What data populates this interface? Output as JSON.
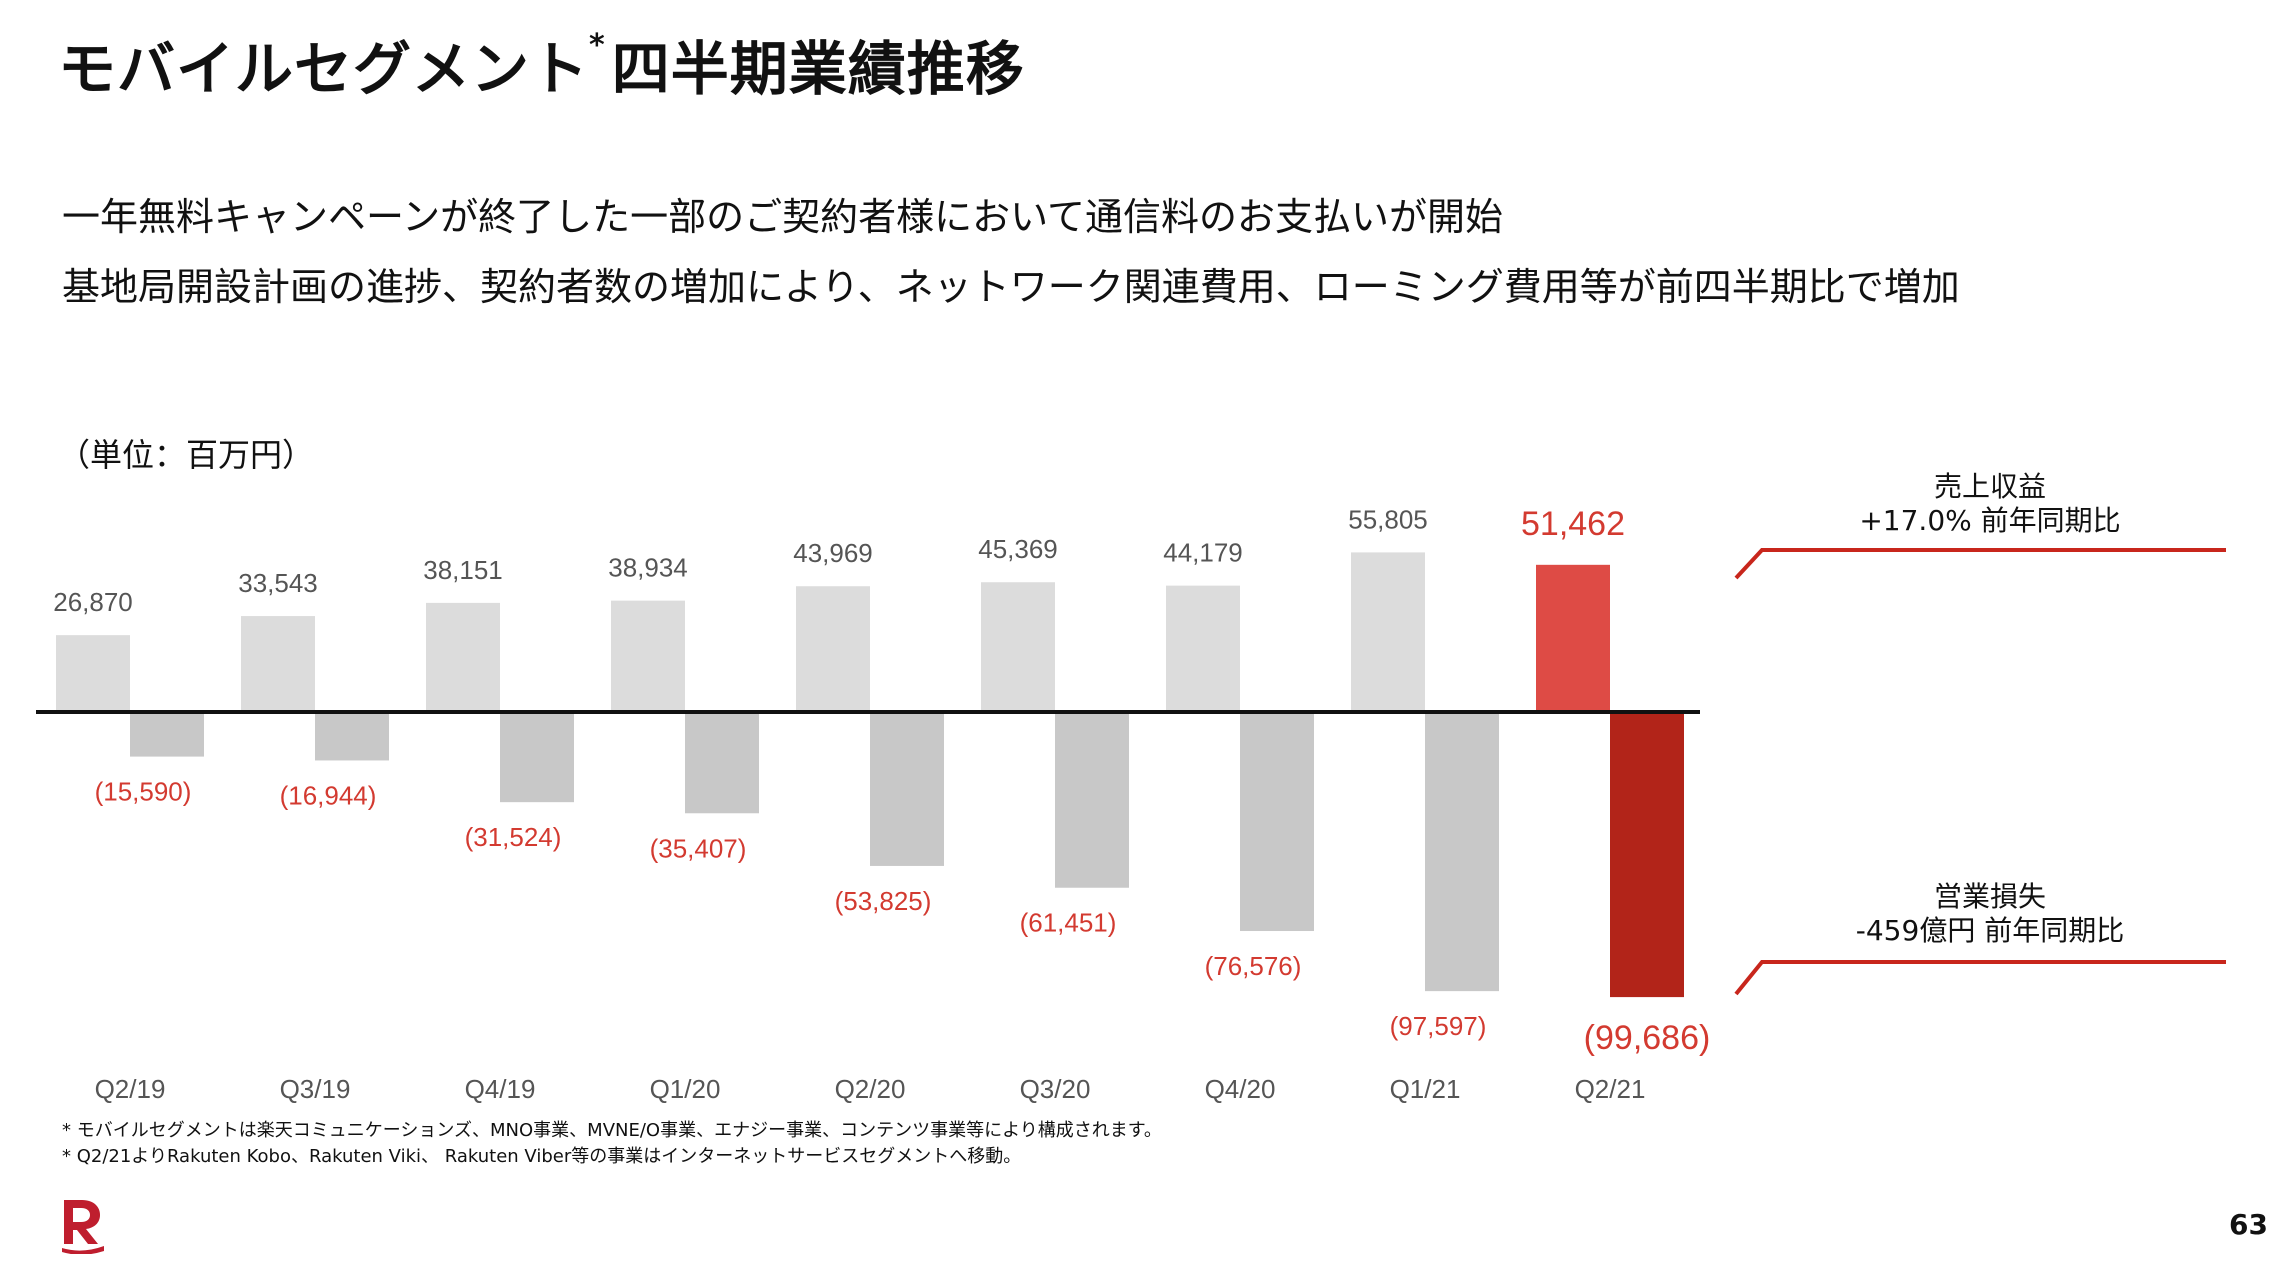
{
  "title": "モバイルセグメント",
  "title_asterisk": "*",
  "title_rest": "四半期業績推移",
  "bullets": [
    "一年無料キャンペーンが終了した一部のご契約者様において通信料のお支払いが開始",
    "基地局開設計画の進捗、契約者数の増加により、ネットワーク関連費用、ローミング費用等が前四半期比で増加"
  ],
  "unit_label": "（単位：百万円）",
  "chart_data": {
    "type": "bar",
    "categories": [
      "Q2/19",
      "Q3/19",
      "Q4/19",
      "Q1/20",
      "Q2/20",
      "Q3/20",
      "Q4/20",
      "Q1/21",
      "Q2/21"
    ],
    "series": [
      {
        "name": "売上収益",
        "values": [
          26870,
          33543,
          38151,
          38934,
          43969,
          45369,
          44179,
          55805,
          51462
        ],
        "labels": [
          "26,870",
          "33,543",
          "38,151",
          "38,934",
          "43,969",
          "45,369",
          "44,179",
          "55,805",
          "51,462"
        ]
      },
      {
        "name": "営業損失",
        "values": [
          -15590,
          -16944,
          -31524,
          -35407,
          -53825,
          -61451,
          -76576,
          -97597,
          -99686
        ],
        "labels": [
          "(15,590)",
          "(16,944)",
          "(31,524)",
          "(35,407)",
          "(53,825)",
          "(61,451)",
          "(76,576)",
          "(97,597)",
          "(99,686)"
        ]
      }
    ],
    "ylim": [
      -99686,
      55805
    ],
    "colors": {
      "revenue": "#dcdcdc",
      "revenue_highlight": "#de4b45",
      "loss": "#c8c8c8",
      "loss_highlight": "#b22419",
      "loss_label": "#d33a30",
      "axis": "#111111",
      "tick_label": "#555555"
    }
  },
  "callouts": [
    {
      "line1": "売上収益",
      "line2": "+17.0% 前年同期比"
    },
    {
      "line1": "営業損失",
      "line2": "-459億円 前年同期比"
    }
  ],
  "notes": [
    "* モバイルセグメントは楽天コミュニケーションズ、MNO事業、MVNE/O事業、エナジー事業、コンテンツ事業等により構成されます。",
    "* Q2/21よりRakuten Kobo、Rakuten Viki、 Rakuten Viber等の事業はインターネットサービスセグメントへ移動。"
  ],
  "logo_icon": "rakuten-r-logo-icon",
  "page_number": "63"
}
